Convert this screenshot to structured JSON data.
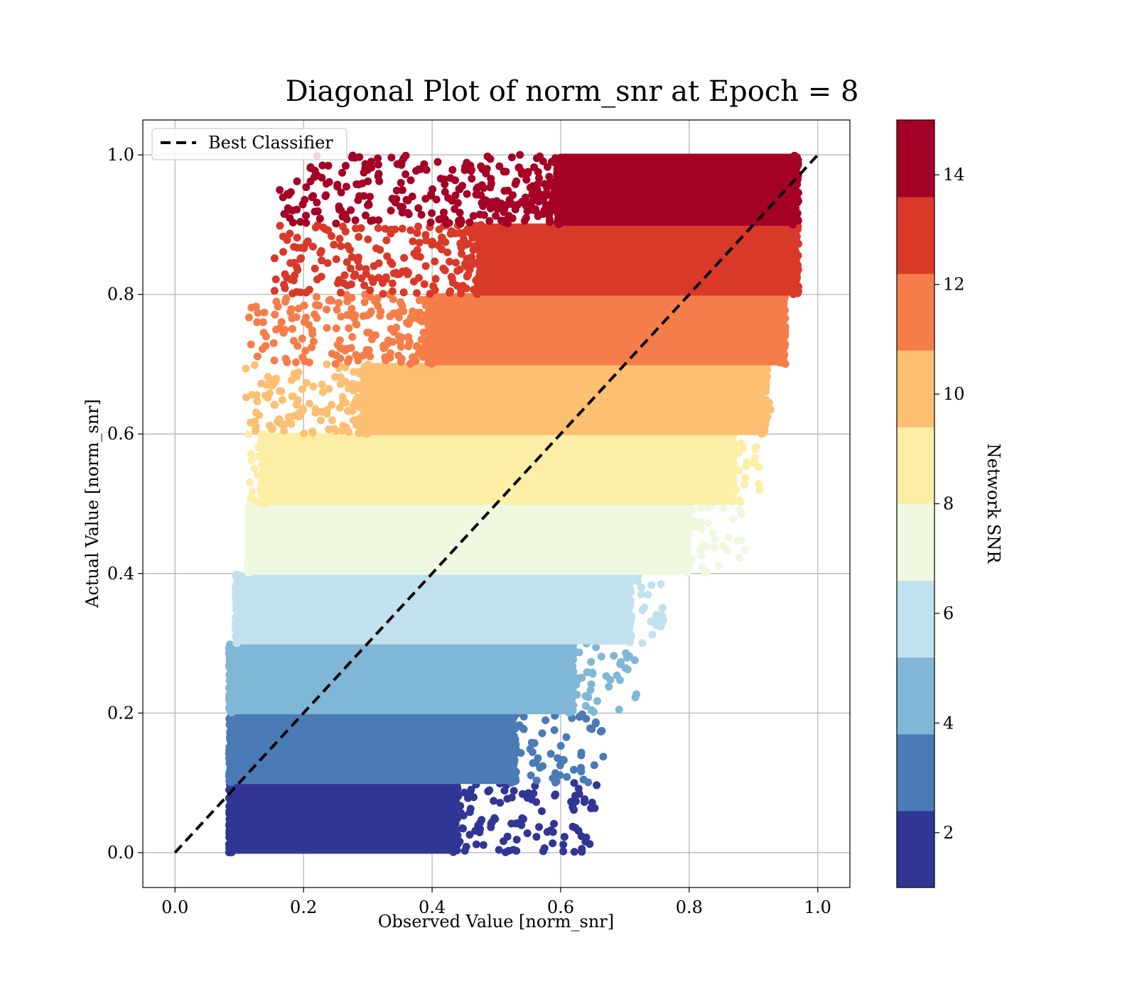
{
  "chart_data": {
    "type": "scatter",
    "title": "Diagonal Plot of norm_snr at Epoch = 8",
    "xlabel": "Observed Value [norm_snr]",
    "ylabel": "Actual Value [norm_snr]",
    "xlim": [
      -0.05,
      1.05
    ],
    "ylim": [
      -0.05,
      1.05
    ],
    "x_ticks": [
      "0.0",
      "0.2",
      "0.4",
      "0.6",
      "0.8",
      "1.0"
    ],
    "y_ticks": [
      "0.0",
      "0.2",
      "0.4",
      "0.6",
      "0.8",
      "1.0"
    ],
    "grid": true,
    "legend": {
      "placement": "upper-left",
      "entries": [
        "Best Classifier"
      ]
    },
    "reference_line": {
      "label": "Best Classifier",
      "x": [
        0.0,
        1.0
      ],
      "y": [
        0.0,
        1.0
      ],
      "style": "dashed",
      "color": "#000000"
    },
    "colorbar": {
      "label": "Network SNR",
      "range": [
        1,
        15
      ],
      "ticks": [
        "2",
        "4",
        "6",
        "8",
        "10",
        "12",
        "14"
      ],
      "bands": [
        {
          "from": 1,
          "to": 2.4,
          "color": "#313695"
        },
        {
          "from": 2.4,
          "to": 3.8,
          "color": "#4a7bb7"
        },
        {
          "from": 3.8,
          "to": 5.2,
          "color": "#80b6d6"
        },
        {
          "from": 5.2,
          "to": 6.6,
          "color": "#c0e1ed"
        },
        {
          "from": 6.6,
          "to": 8.0,
          "color": "#eff9df"
        },
        {
          "from": 8.0,
          "to": 9.4,
          "color": "#fdeea5"
        },
        {
          "from": 9.4,
          "to": 10.8,
          "color": "#fdbf71"
        },
        {
          "from": 10.8,
          "to": 12.2,
          "color": "#f57d4a"
        },
        {
          "from": 12.2,
          "to": 13.6,
          "color": "#d93929"
        },
        {
          "from": 13.6,
          "to": 15,
          "color": "#a50026"
        }
      ]
    },
    "scatter_bands": [
      {
        "y_range": [
          0.0,
          0.1
        ],
        "x_dense": [
          0.09,
          0.43
        ],
        "x_extent": [
          0.09,
          0.66
        ],
        "color": "#313695"
      },
      {
        "y_range": [
          0.1,
          0.2
        ],
        "x_dense": [
          0.09,
          0.52
        ],
        "x_extent": [
          0.09,
          0.67
        ],
        "color": "#4a7bb7"
      },
      {
        "y_range": [
          0.2,
          0.3
        ],
        "x_dense": [
          0.09,
          0.61
        ],
        "x_extent": [
          0.09,
          0.72
        ],
        "color": "#80b6d6"
      },
      {
        "y_range": [
          0.3,
          0.4
        ],
        "x_dense": [
          0.1,
          0.7
        ],
        "x_extent": [
          0.1,
          0.76
        ],
        "color": "#c0e1ed"
      },
      {
        "y_range": [
          0.4,
          0.5
        ],
        "x_dense": [
          0.12,
          0.79
        ],
        "x_extent": [
          0.11,
          0.89
        ],
        "color": "#eff9df"
      },
      {
        "y_range": [
          0.5,
          0.6
        ],
        "x_dense": [
          0.14,
          0.86
        ],
        "x_extent": [
          0.11,
          0.91
        ],
        "color": "#fdeea5"
      },
      {
        "y_range": [
          0.6,
          0.7
        ],
        "x_dense": [
          0.3,
          0.91
        ],
        "x_extent": [
          0.11,
          0.94
        ],
        "color": "#fdbf71"
      },
      {
        "y_range": [
          0.7,
          0.8
        ],
        "x_dense": [
          0.4,
          0.94
        ],
        "x_extent": [
          0.11,
          0.95
        ],
        "color": "#f57d4a"
      },
      {
        "y_range": [
          0.8,
          0.9
        ],
        "x_dense": [
          0.48,
          0.96
        ],
        "x_extent": [
          0.15,
          0.96
        ],
        "color": "#d93929"
      },
      {
        "y_range": [
          0.9,
          1.0
        ],
        "x_dense": [
          0.6,
          0.96
        ],
        "x_extent": [
          0.16,
          0.96
        ],
        "color": "#a50026"
      }
    ]
  }
}
